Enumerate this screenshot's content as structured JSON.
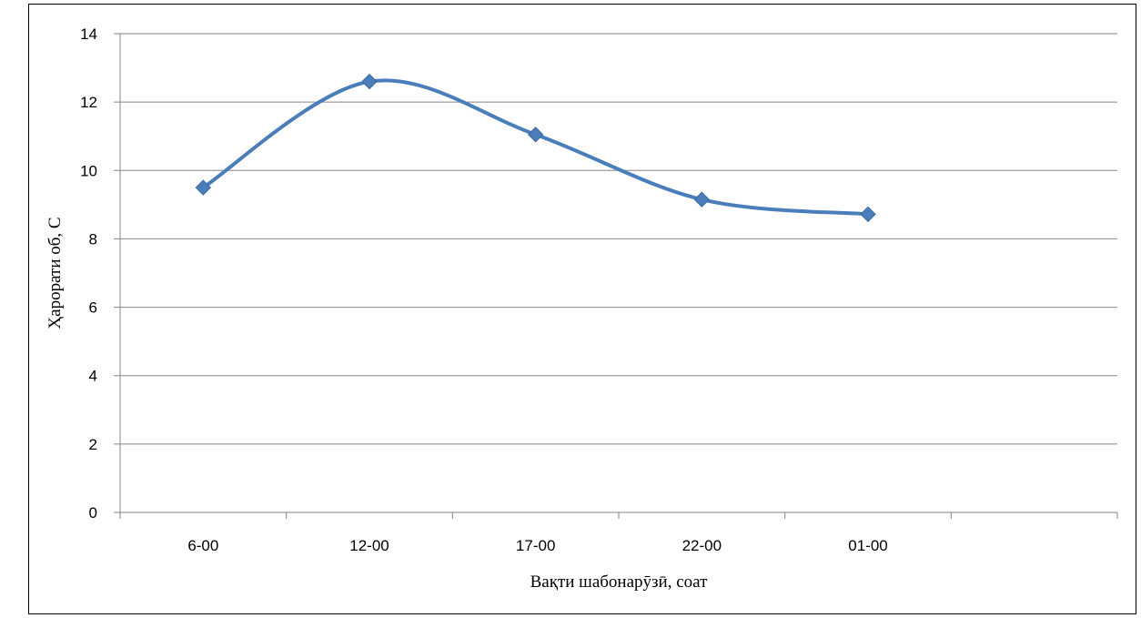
{
  "chart_data": {
    "type": "line",
    "categories": [
      "6-00",
      "12-00",
      "17-00",
      "22-00",
      "01-00"
    ],
    "series": [
      {
        "values": [
          9.5,
          12.6,
          11.05,
          9.15,
          8.72
        ]
      }
    ],
    "xlabel": "Вақти шабонарӯзӣ, соат",
    "ylabel": "Ҳарорати об, С",
    "ylim": [
      0,
      14
    ],
    "yticks": [
      0,
      2,
      4,
      6,
      8,
      10,
      12,
      14
    ],
    "smooth": true,
    "marker": "diamond",
    "grid": true,
    "legend": "none",
    "colors": {
      "line": "#4a7ebb",
      "marker": "#4a7ebb",
      "grid": "#868686",
      "axis": "#868686"
    }
  }
}
